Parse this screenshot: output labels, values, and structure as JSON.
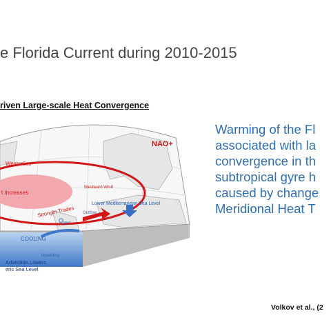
{
  "header": {
    "title": "e Florida Current during 2010-2015"
  },
  "figure": {
    "heading": "riven Large-scale Heat Convergence",
    "labels": {
      "nao": "NAO+",
      "westerlies": "Westerlies",
      "increases": "t Increases",
      "westward_wind": "Westward Wind",
      "stronger_trades": "Stronger Trades",
      "outflow": "Outflow",
      "mediterranean": "Lower Mediterranean Sea Level",
      "q": "Q",
      "q_sub": "MHT",
      "cooling": "COOLING",
      "upwelling": "Upwelling",
      "advection_1": "Advection Lowers",
      "advection_2": "eric Sea Level"
    }
  },
  "text": {
    "lines": [
      "Warming of the Fl",
      "associated with la",
      "convergence in th",
      "subtropical gyre h",
      "caused by change",
      "Meridional Heat T"
    ]
  },
  "citation": "Volkov et al., (2"
}
